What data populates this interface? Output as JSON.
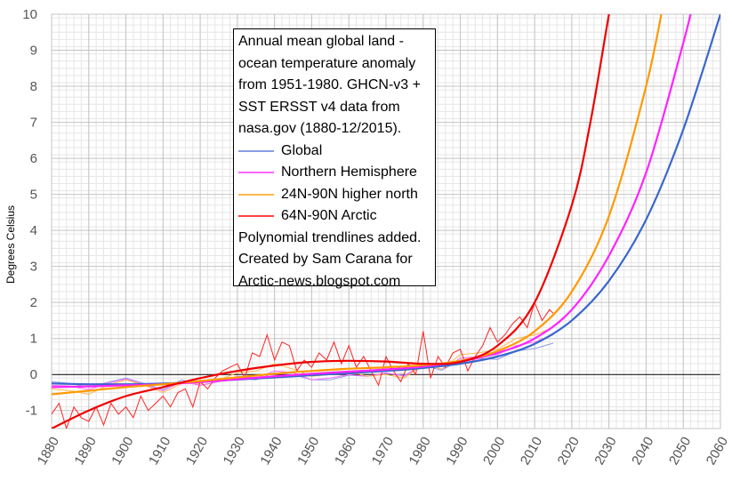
{
  "chart_data": {
    "type": "line",
    "title": "Annual mean global land - ocean temperature anomaly from 1951-1980. GHCN-v3 + SST ERSST v4 data from nasa.gov (1880-12/2015).",
    "xlabel": "",
    "ylabel": "Degrees Celsius",
    "xlim": [
      1880,
      2060
    ],
    "ylim": [
      -1.5,
      10
    ],
    "x_ticks": [
      1880,
      1890,
      1900,
      1910,
      1920,
      1930,
      1940,
      1950,
      1960,
      1970,
      1980,
      1990,
      2000,
      2010,
      2020,
      2030,
      2040,
      2050,
      2060
    ],
    "y_ticks": [
      -1,
      0,
      1,
      2,
      3,
      4,
      5,
      6,
      7,
      8,
      9,
      10
    ],
    "grid": true,
    "legend_position": "top-center",
    "note": "Polynomial trendlines added.",
    "credit": "Created by Sam Carana for Arctic-news.blogspot.com",
    "series": [
      {
        "name": "Global",
        "color": "#8a9de6",
        "trend_color": "#3a66cc",
        "years": [
          1880,
          1885,
          1890,
          1895,
          1900,
          1905,
          1910,
          1915,
          1920,
          1925,
          1930,
          1935,
          1940,
          1945,
          1950,
          1955,
          1960,
          1965,
          1970,
          1975,
          1980,
          1985,
          1990,
          1995,
          2000,
          2005,
          2010,
          2015
        ],
        "values": [
          -0.2,
          -0.25,
          -0.35,
          -0.22,
          -0.1,
          -0.25,
          -0.42,
          -0.15,
          -0.3,
          -0.2,
          -0.1,
          -0.15,
          0.05,
          0.0,
          -0.15,
          -0.15,
          -0.02,
          -0.05,
          0.03,
          -0.02,
          0.25,
          0.12,
          0.4,
          0.45,
          0.42,
          0.65,
          0.72,
          0.87
        ],
        "trend_years": [
          1880,
          1890,
          1900,
          1910,
          1920,
          1930,
          1940,
          1950,
          1960,
          1970,
          1980,
          1990,
          2000,
          2010,
          2020,
          2030,
          2040,
          2050,
          2060
        ],
        "trend_values": [
          -0.25,
          -0.27,
          -0.27,
          -0.25,
          -0.2,
          -0.14,
          -0.08,
          -0.02,
          0.04,
          0.1,
          0.18,
          0.3,
          0.5,
          0.85,
          1.5,
          2.6,
          4.3,
          6.8,
          10.0
        ]
      },
      {
        "name": "Northern Hemisphere",
        "color": "#ff66ff",
        "trend_color": "#ff22ff",
        "years": [
          1880,
          1885,
          1890,
          1895,
          1900,
          1905,
          1910,
          1915,
          1920,
          1925,
          1930,
          1935,
          1940,
          1945,
          1950,
          1955,
          1960,
          1965,
          1970,
          1975,
          1980,
          1985,
          1990,
          1995,
          2000,
          2005,
          2010,
          2015
        ],
        "values": [
          -0.3,
          -0.32,
          -0.42,
          -0.25,
          -0.12,
          -0.28,
          -0.45,
          -0.2,
          -0.3,
          -0.2,
          -0.05,
          -0.1,
          0.1,
          0.05,
          -0.15,
          -0.1,
          0.0,
          -0.05,
          0.05,
          -0.05,
          0.3,
          0.15,
          0.45,
          0.5,
          0.55,
          0.8,
          0.9,
          1.1
        ],
        "trend_years": [
          1880,
          1890,
          1900,
          1910,
          1920,
          1930,
          1940,
          1950,
          1960,
          1970,
          1980,
          1990,
          2000,
          2010,
          2020,
          2030,
          2040,
          2050,
          2053
        ],
        "trend_values": [
          -0.35,
          -0.33,
          -0.3,
          -0.27,
          -0.21,
          -0.13,
          -0.05,
          0.02,
          0.08,
          0.14,
          0.22,
          0.36,
          0.6,
          1.0,
          1.8,
          3.3,
          5.6,
          9.2,
          10.5
        ]
      },
      {
        "name": "24N-90N higher north",
        "color": "#ffb84d",
        "trend_color": "#ff9900",
        "years": [
          1880,
          1885,
          1890,
          1895,
          1900,
          1905,
          1910,
          1915,
          1920,
          1925,
          1930,
          1935,
          1940,
          1945,
          1950,
          1955,
          1960,
          1965,
          1970,
          1975,
          1980,
          1985,
          1990,
          1995,
          2000,
          2005,
          2010,
          2015
        ],
        "values": [
          -0.4,
          -0.45,
          -0.55,
          -0.3,
          -0.15,
          -0.3,
          -0.5,
          -0.25,
          -0.25,
          -0.15,
          0.05,
          0.1,
          0.3,
          0.15,
          -0.05,
          0.0,
          0.1,
          -0.05,
          0.0,
          -0.1,
          0.3,
          0.15,
          0.55,
          0.6,
          0.7,
          1.0,
          1.1,
          1.3
        ],
        "trend_years": [
          1880,
          1890,
          1900,
          1910,
          1920,
          1930,
          1940,
          1950,
          1960,
          1970,
          1980,
          1990,
          2000,
          2010,
          2020,
          2030,
          2040,
          2045
        ],
        "trend_values": [
          -0.55,
          -0.45,
          -0.35,
          -0.27,
          -0.18,
          -0.08,
          0.02,
          0.1,
          0.16,
          0.2,
          0.26,
          0.38,
          0.65,
          1.2,
          2.3,
          4.4,
          8.0,
          10.5
        ]
      },
      {
        "name": "64N-90N Arctic",
        "color": "#ff2222",
        "trend_color": "#ee0000",
        "years": [
          1880,
          1882,
          1884,
          1886,
          1888,
          1890,
          1892,
          1894,
          1896,
          1898,
          1900,
          1902,
          1904,
          1906,
          1908,
          1910,
          1912,
          1914,
          1916,
          1918,
          1920,
          1922,
          1924,
          1926,
          1928,
          1930,
          1932,
          1934,
          1936,
          1938,
          1940,
          1942,
          1944,
          1946,
          1948,
          1950,
          1952,
          1954,
          1956,
          1958,
          1960,
          1962,
          1964,
          1966,
          1968,
          1970,
          1972,
          1974,
          1976,
          1978,
          1980,
          1982,
          1984,
          1986,
          1988,
          1990,
          1992,
          1994,
          1996,
          1998,
          2000,
          2002,
          2004,
          2006,
          2008,
          2010,
          2012,
          2014,
          2015
        ],
        "values": [
          -1.1,
          -0.8,
          -1.5,
          -0.9,
          -1.2,
          -1.3,
          -0.9,
          -1.4,
          -0.8,
          -1.1,
          -0.9,
          -1.2,
          -0.6,
          -1.0,
          -0.8,
          -0.6,
          -0.9,
          -0.5,
          -0.4,
          -0.9,
          -0.2,
          -0.4,
          -0.1,
          0.1,
          0.2,
          0.3,
          -0.1,
          0.6,
          0.5,
          1.1,
          0.4,
          0.9,
          0.8,
          0.1,
          0.4,
          0.2,
          0.6,
          0.4,
          0.9,
          0.3,
          0.8,
          0.2,
          0.5,
          0.1,
          -0.3,
          0.5,
          0.1,
          -0.2,
          0.3,
          0.0,
          1.2,
          -0.1,
          0.5,
          0.2,
          0.6,
          0.7,
          0.1,
          0.5,
          0.8,
          1.3,
          0.9,
          1.1,
          1.4,
          1.6,
          1.3,
          2.0,
          1.5,
          1.8,
          1.7
        ],
        "trend_years": [
          1880,
          1890,
          1900,
          1910,
          1920,
          1930,
          1940,
          1950,
          1960,
          1970,
          1980,
          1990,
          2000,
          2010,
          2020,
          2025,
          2030,
          2032
        ],
        "trend_values": [
          -1.5,
          -1.0,
          -0.6,
          -0.35,
          -0.1,
          0.1,
          0.25,
          0.35,
          0.38,
          0.36,
          0.3,
          0.35,
          0.8,
          2.0,
          4.7,
          7.0,
          10.0,
          11.0
        ]
      }
    ]
  }
}
